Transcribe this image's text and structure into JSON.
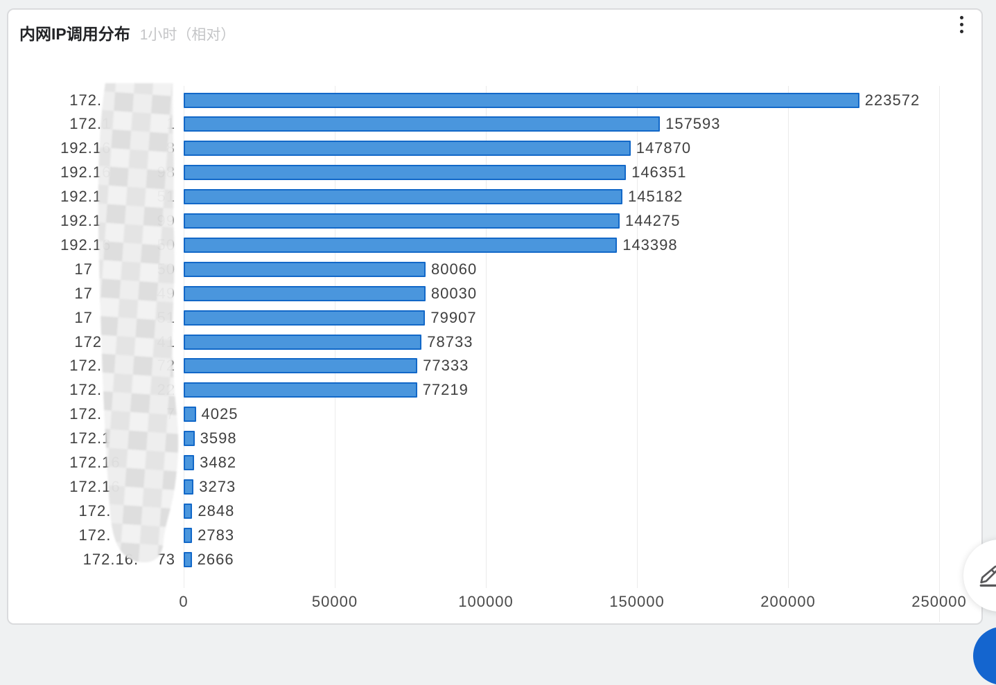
{
  "panel": {
    "title": "内网IP调用分布",
    "subtitle": "1小时（相对）"
  },
  "icons": {
    "menu": "kebab-menu-icon",
    "edit": "pencil-edit-icon"
  },
  "chart_data": {
    "type": "bar",
    "orientation": "horizontal",
    "title": "内网IP调用分布",
    "period": "1小时（相对）",
    "xlabel": "",
    "ylabel": "",
    "xlim": [
      0,
      250000
    ],
    "x_ticks": [
      0,
      50000,
      100000,
      150000,
      200000,
      250000
    ],
    "x_tick_labels": [
      "0",
      "50000",
      "100000",
      "150000",
      "200000",
      "250000"
    ],
    "grid": true,
    "value_labels": true,
    "bar_color": "#4a96dd",
    "bar_border_color": "#1268c8",
    "labels_redacted": true,
    "categories": [
      "172.        ",
      "172.1      1",
      "192.16      8",
      "192.16     98",
      "192.1      51",
      "192.1      99",
      "192.16     50",
      "17       50",
      "17       49",
      "17       51",
      "172      41",
      "172.      72",
      "172.      22",
      "172.       7",
      "172.1       ",
      "172.16      ",
      "172.16      ",
      "172.       ",
      "172.       ",
      "172.16.  73"
    ],
    "values": [
      223572,
      157593,
      147870,
      146351,
      145182,
      144275,
      143398,
      80060,
      80030,
      79907,
      78733,
      77333,
      77219,
      4025,
      3598,
      3482,
      3273,
      2848,
      2783,
      2666
    ]
  }
}
